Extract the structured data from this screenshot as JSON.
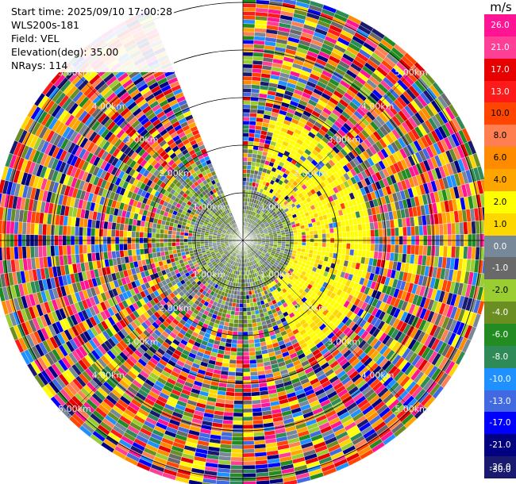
{
  "info": {
    "start_time": "Start time: 2025/09/10 17:00:28",
    "instrument": "WLS200s-181",
    "field": "Field: VEL",
    "elevation": "Elevation(deg): 35.00",
    "nrays": "NRays: 114"
  },
  "chart_data": {
    "type": "heatmap",
    "projection": "polar-ppi",
    "field": "VEL",
    "units": "m/s",
    "elevation_deg": 35.0,
    "n_rays": 114,
    "range_rings_km": [
      1.0,
      2.0,
      3.0,
      4.0,
      5.0
    ],
    "ring_labels": [
      "1.00km",
      "2.00km",
      "3.00km",
      "4.00km",
      "5.00km"
    ],
    "max_range_km": 5.2,
    "missing_sector_deg": [
      -23,
      -1
    ],
    "colorbar": {
      "title": "m/s",
      "ticks": [
        "26.0",
        "21.0",
        "17.0",
        "13.0",
        "10.0",
        "8.0",
        "6.0",
        "4.0",
        "2.0",
        "1.0",
        "0.0",
        "-1.0",
        "-2.0",
        "-4.0",
        "-6.0",
        "-8.0",
        "-10.0",
        "-13.0",
        "-17.0",
        "-21.0",
        "-26.0",
        "-30.0"
      ],
      "colors": [
        "#ff1493",
        "#ff3e96",
        "#e60000",
        "#ff1a1a",
        "#ff4500",
        "#ff7f50",
        "#ff8c00",
        "#ffa500",
        "#ffff00",
        "#ffd700",
        "#778899",
        "#696969",
        "#9acd32",
        "#6b8e23",
        "#228b22",
        "#2e8b57",
        "#1e90ff",
        "#4169e1",
        "#0000ff",
        "#000080",
        "#191970"
      ]
    },
    "regions": [
      {
        "sector": "east",
        "dominant_velocity": "4.0 to 1.0"
      },
      {
        "sector": "center-south",
        "dominant_velocity": "0.0 to -4.0"
      },
      {
        "sector": "outer",
        "dominant_velocity": "mixed (noise)"
      }
    ]
  }
}
